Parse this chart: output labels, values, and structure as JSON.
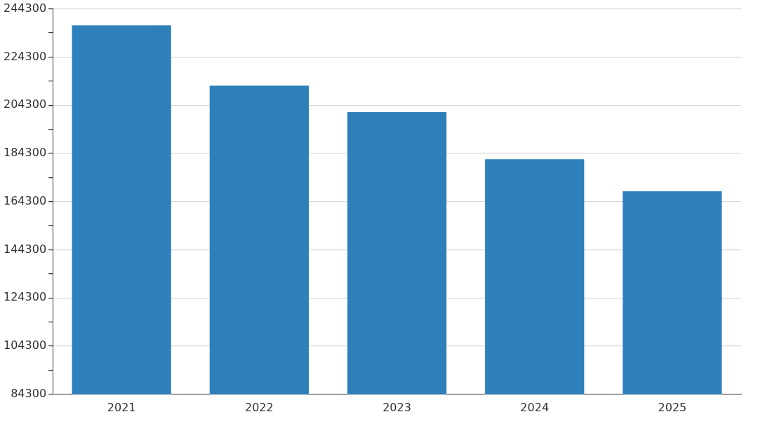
{
  "chart_data": {
    "type": "bar",
    "categories": [
      "2021",
      "2022",
      "2023",
      "2024",
      "2025"
    ],
    "values": [
      237400,
      212400,
      201400,
      181900,
      168600
    ],
    "color": "#2e80ba",
    "ylim": [
      84300,
      244300
    ],
    "yticks": [
      84300,
      {
        "value": 94300,
        "label": null
      },
      104300,
      {
        "value": 114300,
        "label": null
      },
      124300,
      {
        "value": 134300,
        "label": null
      },
      144300,
      {
        "value": 154300,
        "label": null
      },
      164300,
      {
        "value": 174300,
        "label": null
      },
      184300,
      {
        "value": 194300,
        "label": null
      },
      204300,
      {
        "value": 214300,
        "label": null
      },
      224300,
      {
        "value": 234300,
        "label": null
      },
      244300
    ],
    "grid": "y",
    "legend": false
  }
}
